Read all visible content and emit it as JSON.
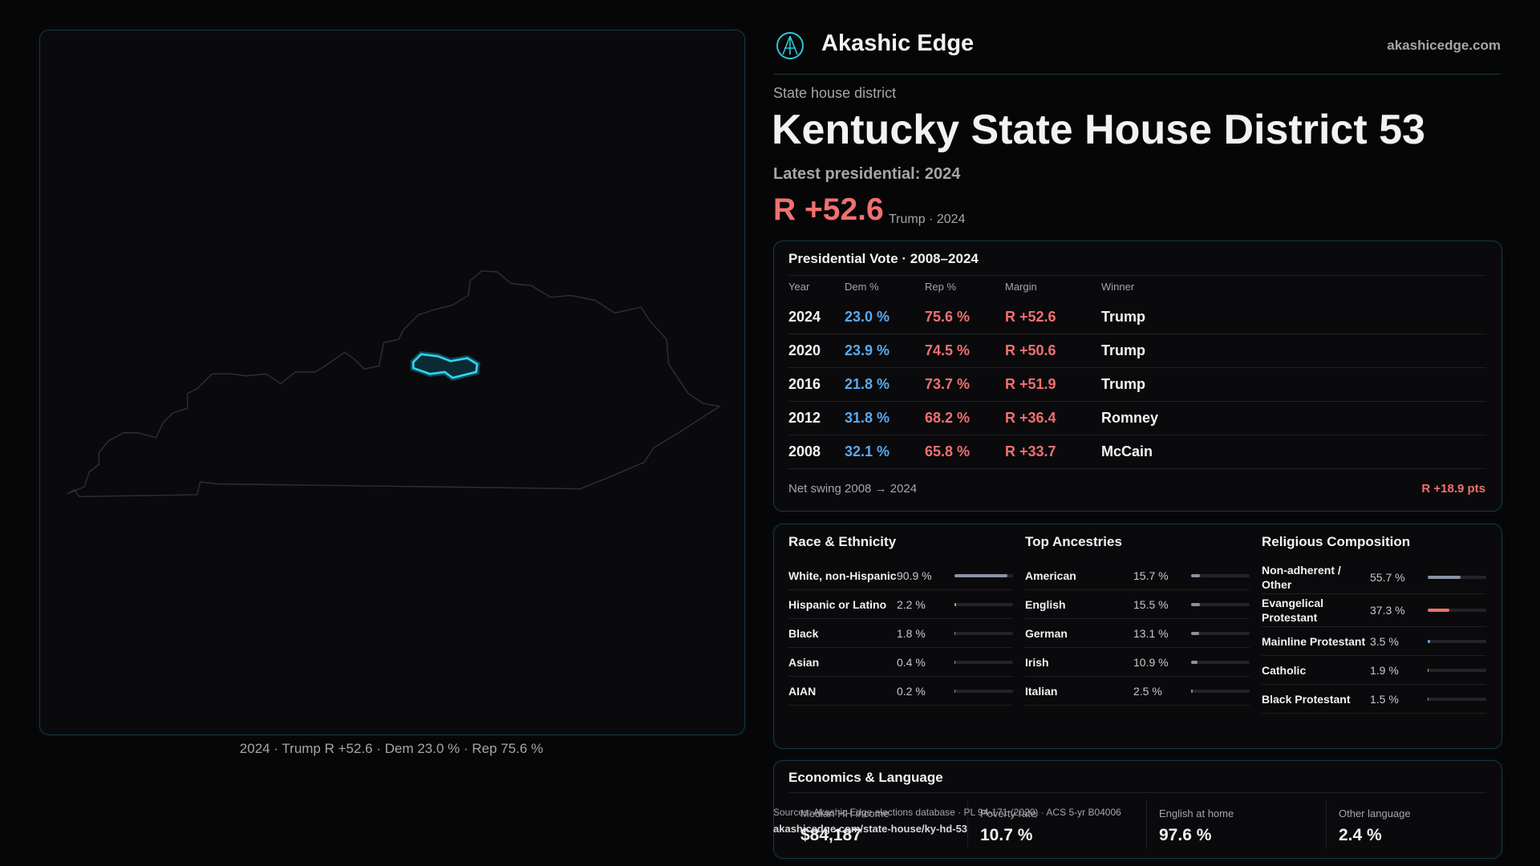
{
  "header": {
    "brand": "Akashic Edge",
    "site": "akashicedge.com"
  },
  "district": {
    "kicker": "State house district",
    "title": "Kentucky State House District 53",
    "latest": "Latest presidential: 2024",
    "margin": "R +52.6",
    "margin_note": "Trump · 2024"
  },
  "map": {
    "caption": "2024 · Trump R +52.6 · Dem 23.0 % · Rep 75.6 %"
  },
  "presidential": {
    "title": "Presidential Vote · 2008–2024",
    "columns": [
      "Year",
      "Dem %",
      "Rep %",
      "Margin",
      "Winner"
    ],
    "rows": [
      [
        "2024",
        "23.0 %",
        "75.6 %",
        "R +52.6",
        "Trump"
      ],
      [
        "2020",
        "23.9 %",
        "74.5 %",
        "R +50.6",
        "Trump"
      ],
      [
        "2016",
        "21.8 %",
        "73.7 %",
        "R +51.9",
        "Trump"
      ],
      [
        "2012",
        "31.8 %",
        "68.2 %",
        "R +36.4",
        "Romney"
      ],
      [
        "2008",
        "32.1 %",
        "65.8 %",
        "R +33.7",
        "McCain"
      ]
    ],
    "swing_label": "Net swing 2008 → 2024",
    "swing_value": "R +18.9 pts"
  },
  "demographics": [
    {
      "title": "Race & Ethnicity",
      "items": [
        {
          "label": "White, non-Hispanic",
          "value": 90.9,
          "value_label": "90.9 %",
          "color": "#8a93a3"
        },
        {
          "label": "Hispanic or Latino",
          "value": 2.2,
          "value_label": "2.2 %",
          "color": "#e0a040"
        },
        {
          "label": "Black",
          "value": 1.8,
          "value_label": "1.8 %",
          "color": "#8a7cf0"
        },
        {
          "label": "Asian",
          "value": 0.4,
          "value_label": "0.4 %",
          "color": "#3fbfa8"
        },
        {
          "label": "AIAN",
          "value": 0.2,
          "value_label": "0.2 %",
          "color": "#8a93a3"
        }
      ]
    },
    {
      "title": "Top Ancestries",
      "items": [
        {
          "label": "American",
          "value": 15.7,
          "value_label": "15.7 %",
          "color": "#8a93a3"
        },
        {
          "label": "English",
          "value": 15.5,
          "value_label": "15.5 %",
          "color": "#8a93a3"
        },
        {
          "label": "German",
          "value": 13.1,
          "value_label": "13.1 %",
          "color": "#8a93a3"
        },
        {
          "label": "Irish",
          "value": 10.9,
          "value_label": "10.9 %",
          "color": "#8a93a3"
        },
        {
          "label": "Italian",
          "value": 2.5,
          "value_label": "2.5 %",
          "color": "#8a93a3"
        }
      ]
    },
    {
      "title": "Religious Composition",
      "items": [
        {
          "label": "Non-adherent / Other",
          "value": 55.7,
          "value_label": "55.7 %",
          "color": "#8a93a3"
        },
        {
          "label": "Evangelical Protestant",
          "value": 37.3,
          "value_label": "37.3 %",
          "color": "#f07070"
        },
        {
          "label": "Mainline Protestant",
          "value": 3.5,
          "value_label": "3.5 %",
          "color": "#5aa9f0"
        },
        {
          "label": "Catholic",
          "value": 1.9,
          "value_label": "1.9 %",
          "color": "#e0a040"
        },
        {
          "label": "Black Protestant",
          "value": 1.5,
          "value_label": "1.5 %",
          "color": "#8a93a3"
        }
      ]
    }
  ],
  "economics": {
    "title": "Economics & Language",
    "items": [
      {
        "label": "Median HH income",
        "value": "$84,187"
      },
      {
        "label": "Poverty rate",
        "value": "10.7 %"
      },
      {
        "label": "English at home",
        "value": "97.6 %"
      },
      {
        "label": "Other language",
        "value": "2.4 %"
      }
    ]
  },
  "footer": {
    "sources": "Sources: Akashic Edge elections database · PL 94-171 (2020) · ACS 5-yr B04006",
    "url": "akashicedge.com/state-house/ky-hd-53"
  }
}
